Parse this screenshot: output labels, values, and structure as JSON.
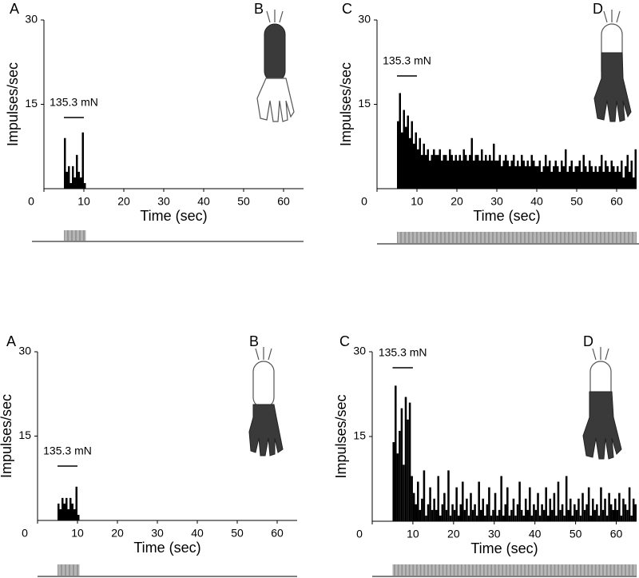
{
  "chart_data": [
    {
      "type": "histogram",
      "panel_label": "A",
      "image_label": "B",
      "ylabel": "Impulses/sec",
      "xlabel": "Time (sec)",
      "stimulus_label": "135.3 mN",
      "stimulus_start": 5,
      "stimulus_end": 10,
      "color": "#000000",
      "bins": [
        5,
        5.5,
        6,
        6.5,
        7,
        7.5,
        8,
        8.5,
        9,
        9.5,
        10,
        10.5
      ],
      "values": [
        9,
        3,
        4,
        1,
        4,
        2,
        6,
        3,
        2,
        10,
        1
      ],
      "xlim": [
        0,
        65
      ],
      "ylim": [
        0,
        30
      ],
      "xticks": [
        0,
        10,
        20,
        30,
        40,
        50,
        60
      ],
      "yticks": [
        15,
        30
      ]
    },
    {
      "type": "histogram",
      "panel_label": "C",
      "image_label": "D",
      "ylabel": "Impulses/sec",
      "xlabel": "Time (sec)",
      "stimulus_label": "135.3 mN",
      "stimulus_start": 5,
      "stimulus_end": 10,
      "color": "#000000",
      "bins": [
        5,
        5.5,
        6,
        6.5,
        7,
        7.5,
        8,
        8.5,
        9,
        9.5,
        10,
        10.5,
        11,
        11.5,
        12,
        12.5,
        13,
        13.5,
        14,
        14.5,
        15,
        15.5,
        16,
        16.5,
        17,
        17.5,
        18,
        18.5,
        19,
        19.5,
        20,
        20.5,
        21,
        21.5,
        22,
        22.5,
        23,
        23.5,
        24,
        24.5,
        25,
        25.5,
        26,
        26.5,
        27,
        27.5,
        28,
        28.5,
        29,
        29.5,
        30,
        30.5,
        31,
        31.5,
        32,
        32.5,
        33,
        33.5,
        34,
        34.5,
        35,
        35.5,
        36,
        36.5,
        37,
        37.5,
        38,
        38.5,
        39,
        39.5,
        40,
        40.5,
        41,
        41.5,
        42,
        42.5,
        43,
        43.5,
        44,
        44.5,
        45,
        45.5,
        46,
        46.5,
        47,
        47.5,
        48,
        48.5,
        49,
        49.5,
        50,
        50.5,
        51,
        51.5,
        52,
        52.5,
        53,
        53.5,
        54,
        54.5,
        55,
        55.5,
        56,
        56.5,
        57,
        57.5,
        58,
        58.5,
        59,
        59.5,
        60,
        60.5,
        61,
        61.5,
        62,
        62.5,
        63,
        63.5,
        64,
        64.5,
        65
      ],
      "values": [
        12,
        17,
        10,
        14,
        11,
        13,
        9,
        12,
        8,
        10,
        7,
        9,
        6,
        8,
        6,
        7,
        5,
        6,
        7,
        6,
        6,
        7,
        5,
        6,
        6,
        5,
        7,
        6,
        5,
        6,
        5,
        6,
        5,
        7,
        6,
        5,
        6,
        9,
        5,
        6,
        6,
        5,
        7,
        5,
        6,
        5,
        6,
        5,
        8,
        5,
        5,
        6,
        4,
        5,
        6,
        5,
        4,
        5,
        6,
        4,
        5,
        4,
        6,
        5,
        4,
        5,
        4,
        6,
        5,
        4,
        4,
        5,
        3,
        4,
        6,
        4,
        5,
        3,
        4,
        5,
        4,
        3,
        5,
        4,
        7,
        3,
        4,
        5,
        3,
        4,
        4,
        5,
        3,
        6,
        4,
        3,
        5,
        4,
        3,
        4,
        3,
        4,
        6,
        3,
        5,
        4,
        3,
        5,
        4,
        3,
        4,
        3,
        5,
        2,
        4,
        6,
        3,
        5,
        2,
        7
      ],
      "xlim": [
        0,
        65
      ],
      "ylim": [
        0,
        30
      ],
      "xticks": [
        0,
        10,
        20,
        30,
        40,
        50,
        60
      ],
      "yticks": [
        15,
        30
      ]
    },
    {
      "type": "histogram",
      "panel_label": "A",
      "image_label": "B",
      "ylabel": "Impulses/sec",
      "xlabel": "Time (sec)",
      "stimulus_label": "135.3 mN",
      "stimulus_start": 5,
      "stimulus_end": 10,
      "color": "#000000",
      "bins": [
        5,
        5.5,
        6,
        6.5,
        7,
        7.5,
        8,
        8.5,
        9,
        9.5,
        10,
        10.5
      ],
      "values": [
        3,
        2,
        4,
        3,
        4,
        2,
        4,
        3,
        2,
        6,
        1
      ],
      "xlim": [
        0,
        65
      ],
      "ylim": [
        0,
        30
      ],
      "xticks": [
        0,
        10,
        20,
        30,
        40,
        50,
        60
      ],
      "yticks": [
        15,
        30
      ]
    },
    {
      "type": "histogram",
      "panel_label": "C",
      "image_label": "D",
      "ylabel": "Impulses/sec",
      "xlabel": "Time (sec)",
      "stimulus_label": "135.3 mN",
      "stimulus_start": 5,
      "stimulus_end": 10,
      "color": "#000000",
      "bins": [
        5,
        5.5,
        6,
        6.5,
        7,
        7.5,
        8,
        8.5,
        9,
        9.5,
        10,
        10.5,
        11,
        11.5,
        12,
        12.5,
        13,
        13.5,
        14,
        14.5,
        15,
        15.5,
        16,
        16.5,
        17,
        17.5,
        18,
        18.5,
        19,
        19.5,
        20,
        20.5,
        21,
        21.5,
        22,
        22.5,
        23,
        23.5,
        24,
        24.5,
        25,
        25.5,
        26,
        26.5,
        27,
        27.5,
        28,
        28.5,
        29,
        29.5,
        30,
        30.5,
        31,
        31.5,
        32,
        32.5,
        33,
        33.5,
        34,
        34.5,
        35,
        35.5,
        36,
        36.5,
        37,
        37.5,
        38,
        38.5,
        39,
        39.5,
        40,
        40.5,
        41,
        41.5,
        42,
        42.5,
        43,
        43.5,
        44,
        44.5,
        45,
        45.5,
        46,
        46.5,
        47,
        47.5,
        48,
        48.5,
        49,
        49.5,
        50,
        50.5,
        51,
        51.5,
        52,
        52.5,
        53,
        53.5,
        54,
        54.5,
        55,
        55.5,
        56,
        56.5,
        57,
        57.5,
        58,
        58.5,
        59,
        59.5,
        60,
        60.5,
        61,
        61.5,
        62,
        62.5,
        63,
        63.5,
        64,
        64.5,
        65
      ],
      "values": [
        14,
        24,
        12,
        16,
        20,
        10,
        22,
        18,
        21,
        8,
        5,
        3,
        7,
        2,
        4,
        9,
        1,
        3,
        6,
        2,
        4,
        2,
        8,
        1,
        3,
        5,
        2,
        9,
        1,
        3,
        2,
        6,
        1,
        3,
        7,
        2,
        4,
        1,
        5,
        2,
        3,
        1,
        7,
        2,
        4,
        1,
        3,
        6,
        1,
        2,
        5,
        1,
        2,
        8,
        1,
        3,
        6,
        1,
        2,
        4,
        1,
        3,
        7,
        2,
        1,
        4,
        2,
        6,
        1,
        3,
        2,
        5,
        1,
        3,
        2,
        6,
        1,
        4,
        2,
        5,
        1,
        7,
        2,
        3,
        1,
        8,
        2,
        4,
        1,
        3,
        2,
        4,
        1,
        5,
        2,
        3,
        6,
        1,
        4,
        2,
        3,
        1,
        6,
        2,
        4,
        1,
        5,
        3,
        2,
        4,
        2,
        5,
        1,
        4,
        3,
        2,
        6,
        1,
        4,
        3
      ],
      "xlim": [
        0,
        65
      ],
      "ylim": [
        0,
        30
      ],
      "xticks": [
        0,
        10,
        20,
        30,
        40,
        50,
        60
      ],
      "yticks": [
        15,
        30
      ]
    }
  ]
}
